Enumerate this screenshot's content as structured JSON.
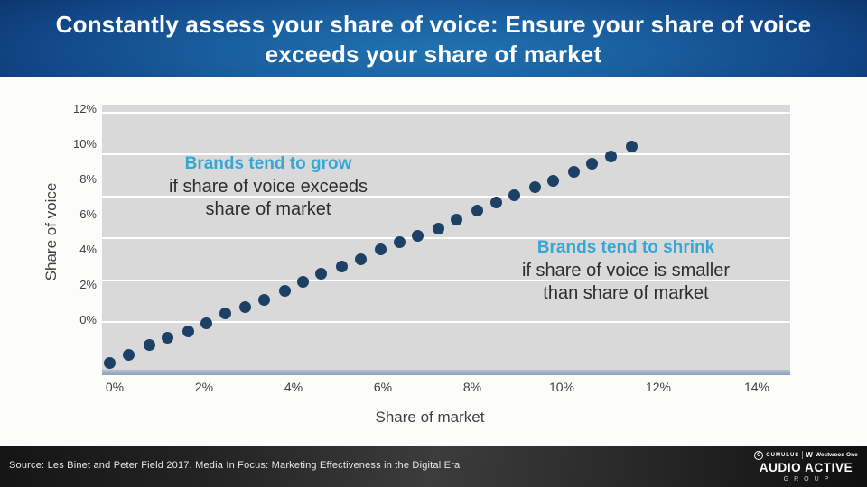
{
  "header": {
    "title_line1": "Constantly assess your share of voice: Ensure your share of voice",
    "title_line2": "exceeds your share of market"
  },
  "chart_data": {
    "type": "scatter",
    "xlabel": "Share of market",
    "ylabel": "Share of voice",
    "x_tick_labels": [
      "0%",
      "2%",
      "4%",
      "6%",
      "8%",
      "10%",
      "12%",
      "14%"
    ],
    "y_tick_labels": [
      "12%",
      "10%",
      "8%",
      "6%",
      "4%",
      "2%",
      "0%"
    ],
    "xlim": [
      -0.3,
      14.7
    ],
    "ylim": [
      -2.3,
      10.4
    ],
    "grid": "horizontal-only",
    "grid_y_values": [
      0,
      2,
      4,
      6,
      8,
      10
    ],
    "grid_color": "#ffffff",
    "plot_bg": "#d9d9d9",
    "point_color": "#1c4066",
    "points": [
      [
        -0.1,
        -1.95
      ],
      [
        0.3,
        -1.55
      ],
      [
        0.75,
        -1.1
      ],
      [
        1.15,
        -0.75
      ],
      [
        1.6,
        -0.45
      ],
      [
        2.0,
        -0.05
      ],
      [
        2.4,
        0.4
      ],
      [
        2.85,
        0.7
      ],
      [
        3.25,
        1.05
      ],
      [
        3.7,
        1.5
      ],
      [
        4.1,
        1.9
      ],
      [
        4.5,
        2.3
      ],
      [
        4.95,
        2.65
      ],
      [
        5.35,
        3.0
      ],
      [
        5.8,
        3.45
      ],
      [
        6.2,
        3.8
      ],
      [
        6.6,
        4.1
      ],
      [
        7.05,
        4.45
      ],
      [
        7.45,
        4.9
      ],
      [
        7.9,
        5.3
      ],
      [
        8.3,
        5.7
      ],
      [
        8.7,
        6.05
      ],
      [
        9.15,
        6.45
      ],
      [
        9.55,
        6.75
      ],
      [
        10.0,
        7.15
      ],
      [
        10.4,
        7.55
      ],
      [
        10.8,
        7.9
      ],
      [
        11.25,
        8.35
      ]
    ],
    "annotations": [
      {
        "headline": "Brands tend to grow",
        "headline_color": "#35a7d6",
        "line2": "if share of voice exceeds",
        "line3": "share of market"
      },
      {
        "headline": "Brands tend to shrink",
        "headline_color": "#35a7d6",
        "line2": "if share of voice is smaller",
        "line3": "than share of market"
      }
    ]
  },
  "footer": {
    "source": "Source: Les Binet and Peter Field 2017. Media In Focus: Marketing Effectiveness in the Digital Era",
    "brand": {
      "c_badge": "C",
      "cumulus": "CUMULUS",
      "westwood_w": "W",
      "westwood": "Westwood One",
      "audio_active": "AUDIO ACTIVE",
      "group": "GROUP"
    }
  }
}
